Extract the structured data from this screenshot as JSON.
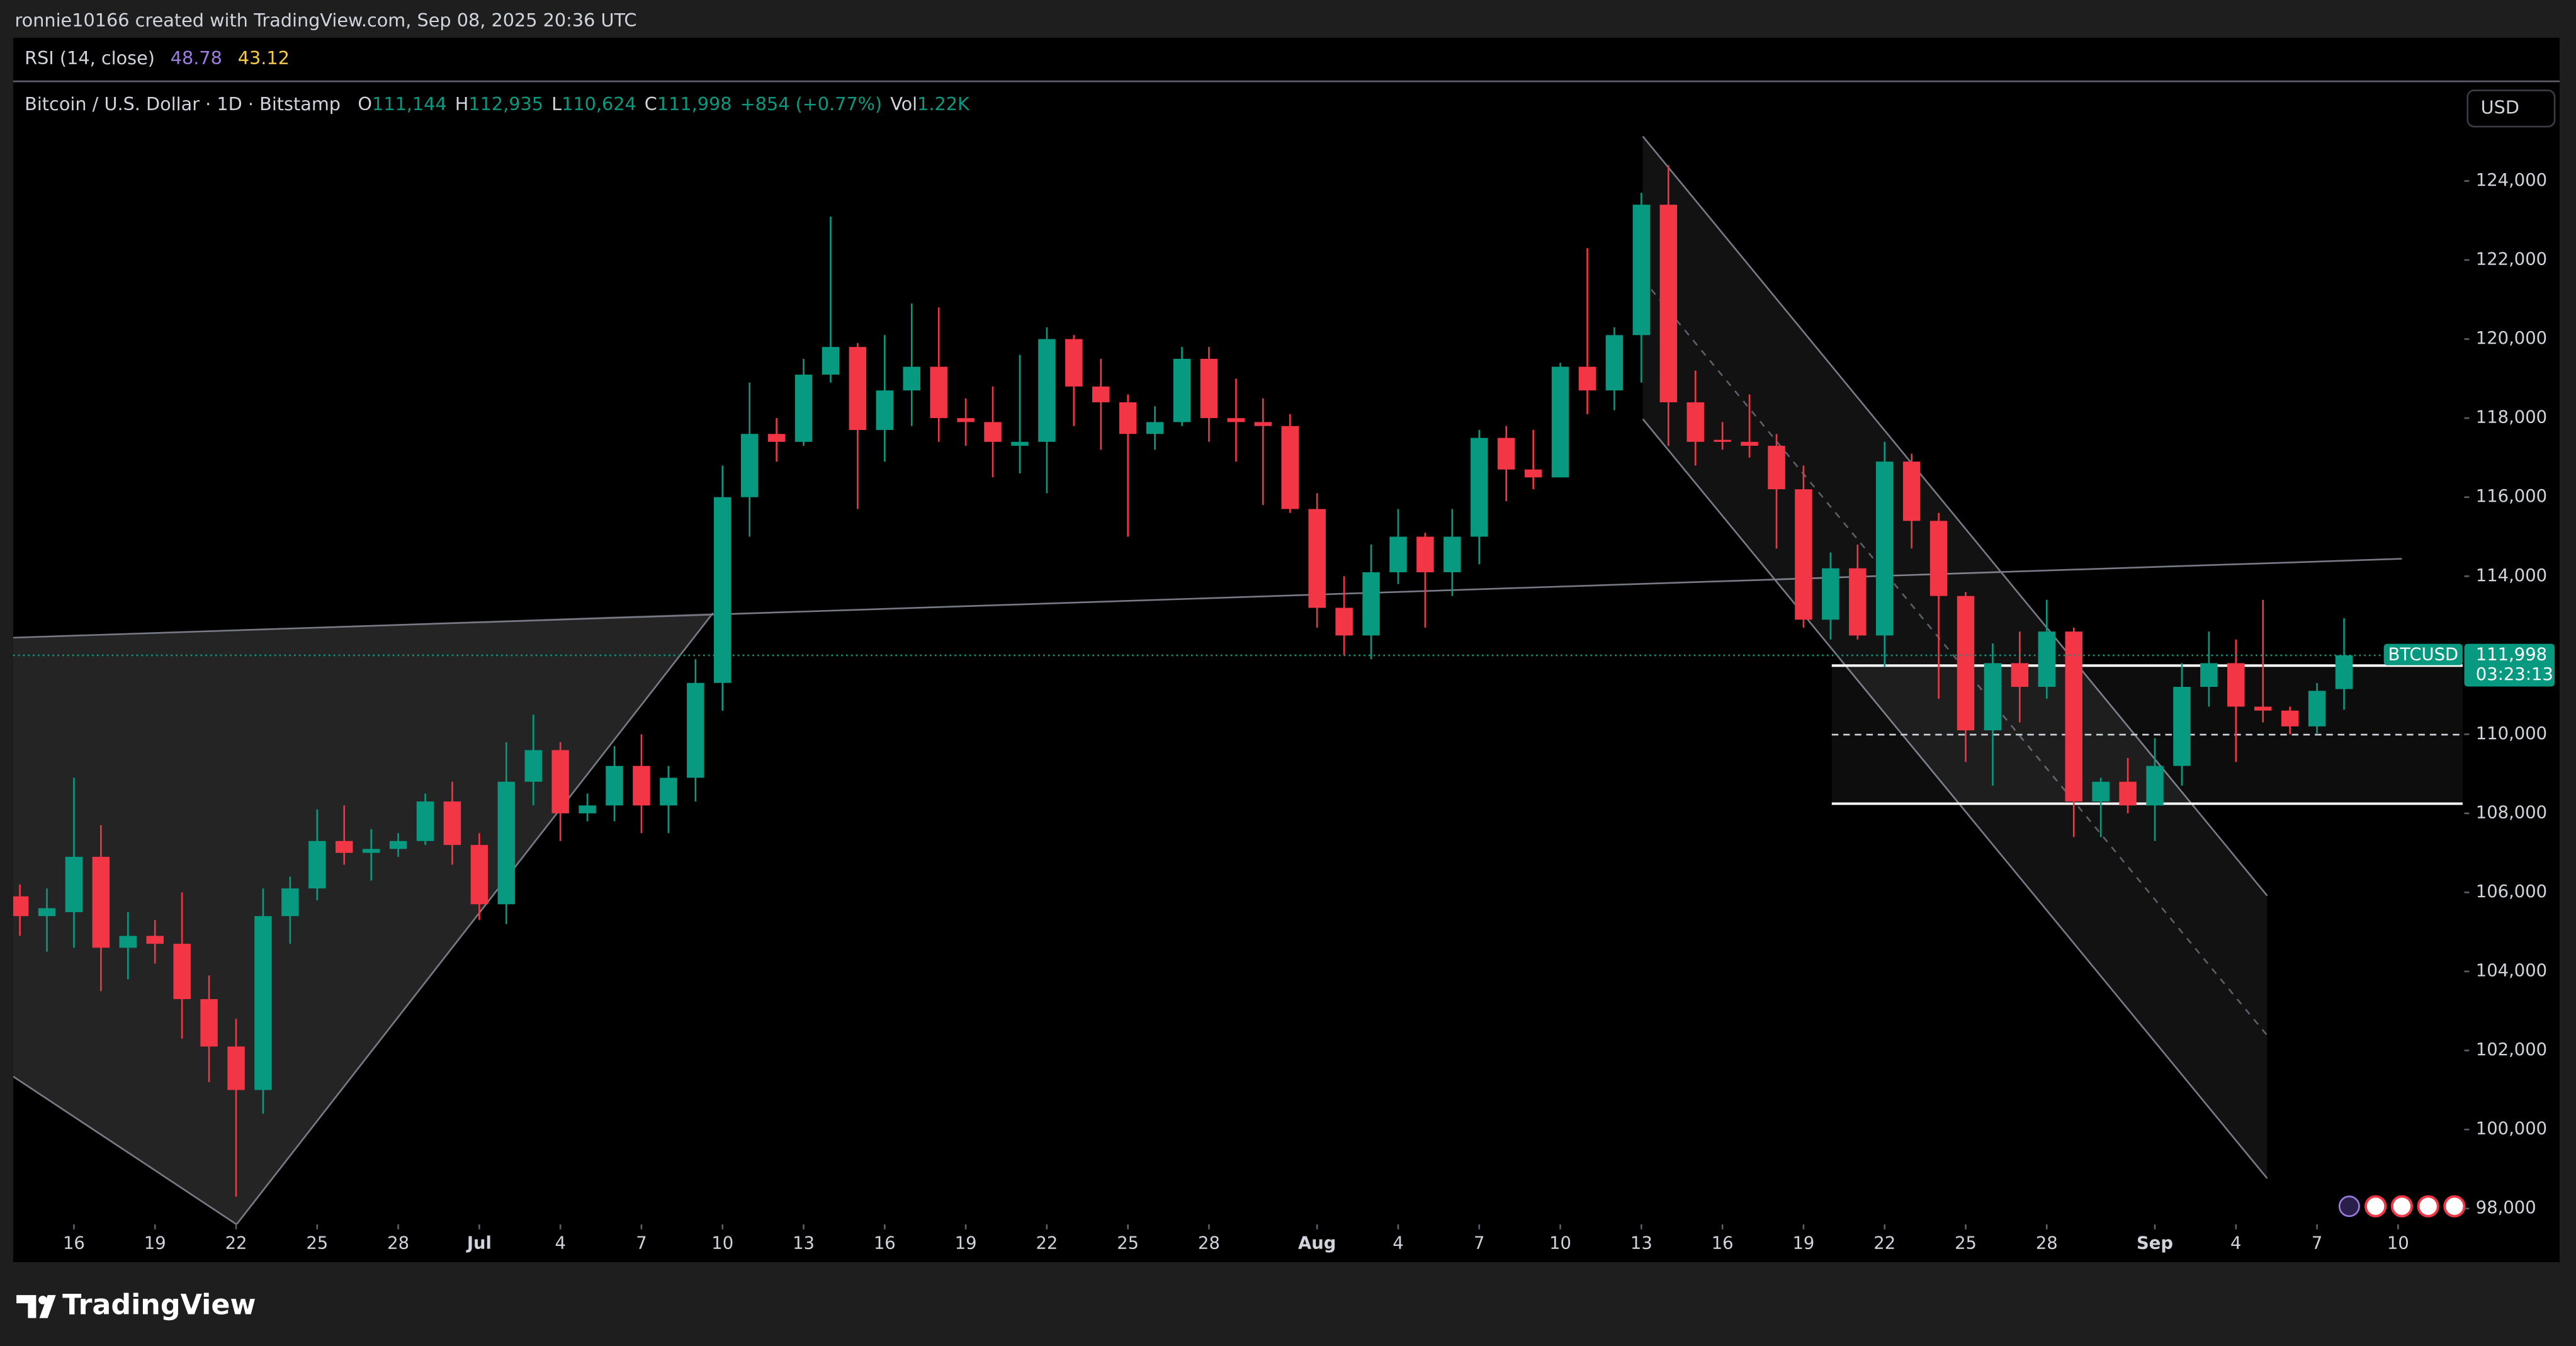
{
  "header": {
    "attribution": "ronnie10166 created with TradingView.com, Sep 08, 2025 20:36 UTC"
  },
  "rsi": {
    "label": "RSI (14, close)",
    "values": [
      48.78,
      43.12
    ]
  },
  "chart_data": {
    "type": "candlestick",
    "title": "Bitcoin / U.S. Dollar · 1D · Bitstamp",
    "ohlc_legend": [
      {
        "key": "O",
        "value": "111,144"
      },
      {
        "key": "H",
        "value": "112,935"
      },
      {
        "key": "L",
        "value": "110,624"
      },
      {
        "key": "C",
        "value": "111,998"
      }
    ],
    "change": "+854 (+0.77%)",
    "volume": {
      "key": "Vol",
      "value": "1.22K"
    },
    "currency": "USD",
    "symbol": "BTCUSD",
    "last_price_label": "111,998",
    "countdown": "03:23:13",
    "up_color": "#089981",
    "down_color": "#f23645",
    "grid": false,
    "x": [
      "2025-06-14",
      "2025-06-15",
      "2025-06-16",
      "2025-06-17",
      "2025-06-18",
      "2025-06-19",
      "2025-06-20",
      "2025-06-21",
      "2025-06-22",
      "2025-06-23",
      "2025-06-24",
      "2025-06-25",
      "2025-06-26",
      "2025-06-27",
      "2025-06-28",
      "2025-06-29",
      "2025-06-30",
      "2025-07-01",
      "2025-07-02",
      "2025-07-03",
      "2025-07-04",
      "2025-07-05",
      "2025-07-06",
      "2025-07-07",
      "2025-07-08",
      "2025-07-09",
      "2025-07-10",
      "2025-07-11",
      "2025-07-12",
      "2025-07-13",
      "2025-07-14",
      "2025-07-15",
      "2025-07-16",
      "2025-07-17",
      "2025-07-18",
      "2025-07-19",
      "2025-07-20",
      "2025-07-21",
      "2025-07-22",
      "2025-07-23",
      "2025-07-24",
      "2025-07-25",
      "2025-07-26",
      "2025-07-27",
      "2025-07-28",
      "2025-07-29",
      "2025-07-30",
      "2025-07-31",
      "2025-08-01",
      "2025-08-02",
      "2025-08-03",
      "2025-08-04",
      "2025-08-05",
      "2025-08-06",
      "2025-08-07",
      "2025-08-08",
      "2025-08-09",
      "2025-08-10",
      "2025-08-11",
      "2025-08-12",
      "2025-08-13",
      "2025-08-14",
      "2025-08-15",
      "2025-08-16",
      "2025-08-17",
      "2025-08-18",
      "2025-08-19",
      "2025-08-20",
      "2025-08-21",
      "2025-08-22",
      "2025-08-23",
      "2025-08-24",
      "2025-08-25",
      "2025-08-26",
      "2025-08-27",
      "2025-08-28",
      "2025-08-29",
      "2025-08-30",
      "2025-08-31",
      "2025-09-01",
      "2025-09-02",
      "2025-09-03",
      "2025-09-04",
      "2025-09-05",
      "2025-09-06",
      "2025-09-07",
      "2025-09-08"
    ],
    "open": [
      105900,
      105400,
      105500,
      106900,
      104600,
      104900,
      104700,
      103300,
      102100,
      101000,
      105400,
      106100,
      107300,
      107000,
      107100,
      107300,
      108300,
      107200,
      105700,
      108800,
      109600,
      108000,
      108200,
      109200,
      108200,
      108900,
      111300,
      116000,
      117600,
      117400,
      119100,
      119800,
      117700,
      118700,
      119300,
      118000,
      117900,
      117300,
      117400,
      120000,
      118800,
      118400,
      117600,
      117900,
      119500,
      118000,
      117900,
      117800,
      115700,
      113200,
      112500,
      114100,
      115000,
      114100,
      115000,
      117500,
      116700,
      116500,
      119300,
      118700,
      120100,
      123400,
      118400,
      117450,
      117400,
      117300,
      116200,
      112900,
      114200,
      112500,
      116900,
      115400,
      113500,
      110100,
      111800,
      111200,
      112600,
      108300,
      108800,
      108200,
      109200,
      111200,
      111800,
      110700,
      110600,
      110200,
      111144
    ],
    "high": [
      106200,
      106100,
      108900,
      107700,
      105500,
      105300,
      106000,
      103900,
      102800,
      106100,
      106400,
      108100,
      108200,
      107600,
      107500,
      108500,
      108800,
      107500,
      109800,
      110500,
      109800,
      108500,
      109700,
      110000,
      109200,
      111900,
      116800,
      118900,
      118000,
      119500,
      123100,
      119900,
      120100,
      120900,
      120800,
      118500,
      118800,
      119600,
      120300,
      120100,
      119500,
      118600,
      118300,
      119800,
      119800,
      119000,
      118500,
      118100,
      116100,
      114000,
      114800,
      115700,
      115100,
      115700,
      117700,
      117800,
      117700,
      119400,
      122300,
      120300,
      123700,
      124400,
      119200,
      117900,
      118600,
      117600,
      116800,
      114600,
      114800,
      117400,
      117100,
      115600,
      113600,
      112300,
      112600,
      113400,
      112700,
      108900,
      109400,
      109900,
      111800,
      112600,
      112400,
      113400,
      110700,
      111300,
      112935
    ],
    "low": [
      104900,
      104500,
      104600,
      103500,
      103800,
      104200,
      102300,
      101200,
      98300,
      100400,
      104700,
      105800,
      106700,
      106300,
      106900,
      107200,
      106700,
      105300,
      105200,
      108200,
      107300,
      107800,
      107800,
      107500,
      107500,
      108300,
      110600,
      115000,
      116900,
      117300,
      118900,
      115700,
      116900,
      117800,
      117400,
      117300,
      116500,
      116600,
      116100,
      117800,
      117200,
      115000,
      117200,
      117800,
      117400,
      116900,
      115800,
      115600,
      112700,
      112000,
      111900,
      113800,
      112700,
      113500,
      114300,
      115900,
      116200,
      116500,
      118100,
      118200,
      118900,
      117300,
      116800,
      117200,
      117000,
      114700,
      112700,
      112400,
      112400,
      111700,
      114700,
      110900,
      109300,
      108700,
      110300,
      110900,
      107400,
      107400,
      108000,
      107300,
      108700,
      110700,
      109300,
      110300,
      110000,
      110000,
      110624
    ],
    "close": [
      105400,
      105600,
      106900,
      104600,
      104900,
      104700,
      103300,
      102100,
      101000,
      105400,
      106100,
      107300,
      107000,
      107100,
      107300,
      108300,
      107200,
      105700,
      108800,
      109600,
      108000,
      108200,
      109200,
      108200,
      108900,
      111300,
      116000,
      117600,
      117400,
      119100,
      119800,
      117700,
      118700,
      119300,
      118000,
      117900,
      117400,
      117400,
      120000,
      118800,
      118400,
      117600,
      117900,
      119500,
      118000,
      117900,
      117800,
      115700,
      113200,
      112500,
      114100,
      115000,
      114100,
      115000,
      117500,
      116700,
      116500,
      119300,
      118700,
      120100,
      123400,
      118400,
      117400,
      117400,
      117300,
      116200,
      112900,
      114200,
      112500,
      116900,
      115400,
      113500,
      110100,
      111800,
      111200,
      112600,
      108300,
      108800,
      108200,
      109200,
      111200,
      111800,
      110700,
      110600,
      110200,
      111100,
      111998
    ],
    "xlim": [
      "2025-06-13",
      "2025-09-13"
    ],
    "xticks": [
      {
        "value": "2025-06-16",
        "label": "16"
      },
      {
        "value": "2025-06-19",
        "label": "19"
      },
      {
        "value": "2025-06-22",
        "label": "22"
      },
      {
        "value": "2025-06-25",
        "label": "25"
      },
      {
        "value": "2025-06-28",
        "label": "28"
      },
      {
        "value": "2025-07-01",
        "label": "Jul"
      },
      {
        "value": "2025-07-04",
        "label": "4"
      },
      {
        "value": "2025-07-07",
        "label": "7"
      },
      {
        "value": "2025-07-10",
        "label": "10"
      },
      {
        "value": "2025-07-13",
        "label": "13"
      },
      {
        "value": "2025-07-16",
        "label": "16"
      },
      {
        "value": "2025-07-19",
        "label": "19"
      },
      {
        "value": "2025-07-22",
        "label": "22"
      },
      {
        "value": "2025-07-25",
        "label": "25"
      },
      {
        "value": "2025-07-28",
        "label": "28"
      },
      {
        "value": "2025-08-01",
        "label": "Aug"
      },
      {
        "value": "2025-08-04",
        "label": "4"
      },
      {
        "value": "2025-08-07",
        "label": "7"
      },
      {
        "value": "2025-08-10",
        "label": "10"
      },
      {
        "value": "2025-08-13",
        "label": "13"
      },
      {
        "value": "2025-08-16",
        "label": "16"
      },
      {
        "value": "2025-08-19",
        "label": "19"
      },
      {
        "value": "2025-08-22",
        "label": "22"
      },
      {
        "value": "2025-08-25",
        "label": "25"
      },
      {
        "value": "2025-08-28",
        "label": "28"
      },
      {
        "value": "2025-09-01",
        "label": "Sep"
      },
      {
        "value": "2025-09-04",
        "label": "4"
      },
      {
        "value": "2025-09-07",
        "label": "7"
      },
      {
        "value": "2025-09-10",
        "label": "10"
      }
    ],
    "ylim": [
      97600,
      126500
    ],
    "yticks": [
      {
        "value": 98000,
        "label": "98,000"
      },
      {
        "value": 100000,
        "label": "100,000"
      },
      {
        "value": 102000,
        "label": "102,000"
      },
      {
        "value": 104000,
        "label": "104,000"
      },
      {
        "value": 106000,
        "label": "106,000"
      },
      {
        "value": 108000,
        "label": "108,000"
      },
      {
        "value": 110000,
        "label": "110,000"
      },
      {
        "value": 112000,
        "label": "112,000"
      },
      {
        "value": 114000,
        "label": "114,000"
      },
      {
        "value": 116000,
        "label": "116,000"
      },
      {
        "value": 118000,
        "label": "118,000"
      },
      {
        "value": 120000,
        "label": "120,000"
      },
      {
        "value": 122000,
        "label": "122,000"
      },
      {
        "value": 124000,
        "label": "124,000"
      }
    ]
  },
  "footer": {
    "brand": "TradingView"
  }
}
